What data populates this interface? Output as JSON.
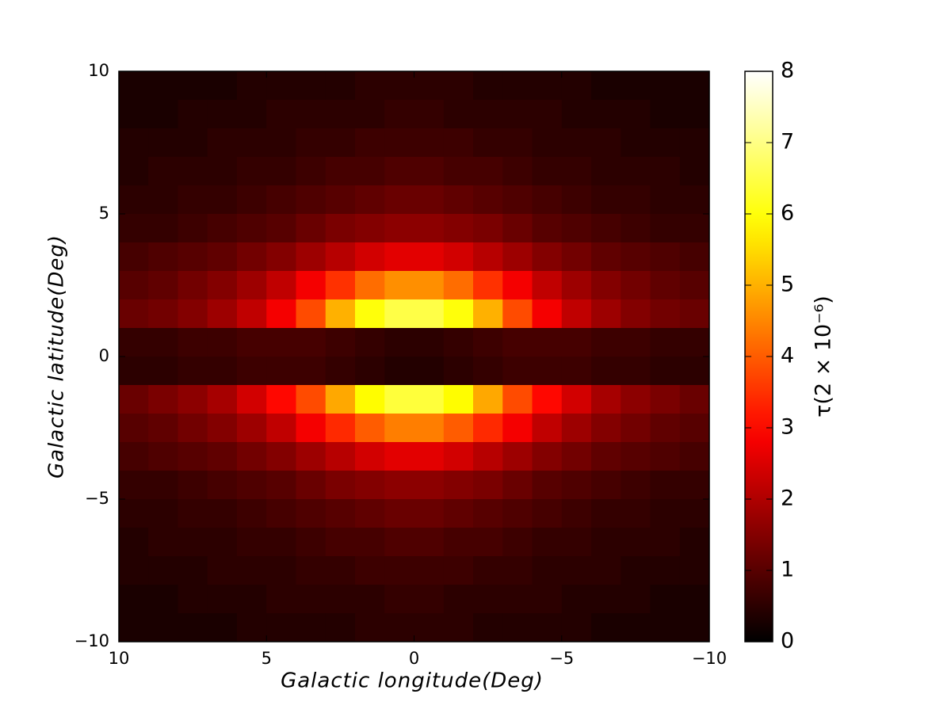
{
  "chart_data": {
    "type": "heatmap",
    "xlabel": "Galactic  longitude(Deg)",
    "ylabel": "Galactic  latitude(Deg)",
    "colorbar_label": "τ(2 × 10⁻⁶)",
    "colormap": "hot",
    "xlim": [
      10,
      -10
    ],
    "ylim": [
      -10,
      10
    ],
    "clim": [
      0,
      8
    ],
    "xticks": [
      10,
      5,
      0,
      {
        "value": -5,
        "label": "−5"
      },
      {
        "value": -10,
        "label": "−10"
      }
    ],
    "yticks": [
      {
        "value": -10,
        "label": "−10"
      },
      {
        "value": -5,
        "label": "−5"
      },
      0,
      5,
      10
    ],
    "cticks": [
      0,
      1,
      2,
      3,
      4,
      5,
      6,
      7,
      8
    ],
    "x": [
      9.5,
      8.5,
      7.5,
      6.5,
      5.5,
      4.5,
      3.5,
      2.5,
      1.5,
      0.5,
      -0.5,
      -1.5,
      -2.5,
      -3.5,
      -4.5,
      -5.5,
      -6.5,
      -7.5,
      -8.5,
      -9.5
    ],
    "y": [
      9.5,
      8.5,
      7.5,
      6.5,
      5.5,
      4.5,
      3.5,
      2.5,
      1.5,
      0.5,
      -0.5,
      -1.5,
      -2.5,
      -3.5,
      -4.5,
      -5.5,
      -6.5,
      -7.5,
      -8.5,
      -9.5
    ],
    "z": [
      [
        0.3,
        0.3,
        0.3,
        0.3,
        0.4,
        0.4,
        0.4,
        0.4,
        0.5,
        0.5,
        0.5,
        0.5,
        0.4,
        0.4,
        0.4,
        0.4,
        0.3,
        0.3,
        0.3,
        0.3
      ],
      [
        0.3,
        0.3,
        0.4,
        0.4,
        0.4,
        0.5,
        0.5,
        0.5,
        0.5,
        0.6,
        0.6,
        0.5,
        0.5,
        0.5,
        0.5,
        0.4,
        0.4,
        0.4,
        0.3,
        0.3
      ],
      [
        0.4,
        0.4,
        0.4,
        0.5,
        0.5,
        0.5,
        0.6,
        0.6,
        0.7,
        0.7,
        0.7,
        0.7,
        0.6,
        0.6,
        0.5,
        0.5,
        0.5,
        0.4,
        0.4,
        0.4
      ],
      [
        0.4,
        0.5,
        0.5,
        0.5,
        0.6,
        0.6,
        0.7,
        0.8,
        0.8,
        0.9,
        0.9,
        0.8,
        0.8,
        0.7,
        0.6,
        0.6,
        0.5,
        0.5,
        0.5,
        0.4
      ],
      [
        0.5,
        0.5,
        0.6,
        0.6,
        0.7,
        0.8,
        0.9,
        1.0,
        1.1,
        1.2,
        1.2,
        1.1,
        1.0,
        0.9,
        0.8,
        0.7,
        0.6,
        0.6,
        0.5,
        0.5
      ],
      [
        0.6,
        0.6,
        0.7,
        0.8,
        0.9,
        1.0,
        1.2,
        1.4,
        1.5,
        1.6,
        1.6,
        1.5,
        1.4,
        1.2,
        1.0,
        0.9,
        0.8,
        0.7,
        0.6,
        0.6
      ],
      [
        0.8,
        0.9,
        1.0,
        1.1,
        1.3,
        1.5,
        1.8,
        2.1,
        2.4,
        2.6,
        2.6,
        2.4,
        2.1,
        1.8,
        1.5,
        1.3,
        1.1,
        1.0,
        0.9,
        0.8
      ],
      [
        1.0,
        1.1,
        1.3,
        1.5,
        1.8,
        2.2,
        2.8,
        3.5,
        4.2,
        4.6,
        4.6,
        4.2,
        3.5,
        2.8,
        2.2,
        1.8,
        1.5,
        1.3,
        1.1,
        1.0
      ],
      [
        1.2,
        1.3,
        1.5,
        1.8,
        2.2,
        2.8,
        3.8,
        5.0,
        6.0,
        6.5,
        6.5,
        6.0,
        5.0,
        3.8,
        2.8,
        2.2,
        1.8,
        1.5,
        1.3,
        1.2
      ],
      [
        0.6,
        0.6,
        0.7,
        0.7,
        0.8,
        0.8,
        0.8,
        0.7,
        0.6,
        0.5,
        0.5,
        0.6,
        0.7,
        0.8,
        0.8,
        0.8,
        0.7,
        0.7,
        0.6,
        0.6
      ],
      [
        0.5,
        0.5,
        0.6,
        0.6,
        0.7,
        0.7,
        0.7,
        0.6,
        0.5,
        0.4,
        0.4,
        0.5,
        0.6,
        0.7,
        0.7,
        0.7,
        0.6,
        0.6,
        0.5,
        0.5
      ],
      [
        1.2,
        1.4,
        1.6,
        1.9,
        2.4,
        3.0,
        3.8,
        4.9,
        5.9,
        6.4,
        6.4,
        5.9,
        4.9,
        3.8,
        3.0,
        2.4,
        1.9,
        1.6,
        1.4,
        1.2
      ],
      [
        1.0,
        1.1,
        1.3,
        1.5,
        1.8,
        2.2,
        2.8,
        3.4,
        4.0,
        4.4,
        4.4,
        4.0,
        3.4,
        2.8,
        2.2,
        1.8,
        1.5,
        1.3,
        1.1,
        1.0
      ],
      [
        0.8,
        0.9,
        1.0,
        1.1,
        1.3,
        1.5,
        1.8,
        2.1,
        2.4,
        2.6,
        2.6,
        2.4,
        2.1,
        1.8,
        1.5,
        1.3,
        1.1,
        1.0,
        0.9,
        0.8
      ],
      [
        0.6,
        0.6,
        0.7,
        0.8,
        0.9,
        1.0,
        1.2,
        1.4,
        1.5,
        1.6,
        1.6,
        1.5,
        1.4,
        1.2,
        1.0,
        0.9,
        0.8,
        0.7,
        0.6,
        0.6
      ],
      [
        0.5,
        0.5,
        0.6,
        0.6,
        0.7,
        0.8,
        0.9,
        1.0,
        1.1,
        1.2,
        1.2,
        1.1,
        1.0,
        0.9,
        0.8,
        0.7,
        0.6,
        0.6,
        0.5,
        0.5
      ],
      [
        0.4,
        0.5,
        0.5,
        0.5,
        0.6,
        0.6,
        0.7,
        0.8,
        0.8,
        0.9,
        0.9,
        0.8,
        0.8,
        0.7,
        0.6,
        0.6,
        0.5,
        0.5,
        0.5,
        0.4
      ],
      [
        0.4,
        0.4,
        0.4,
        0.5,
        0.5,
        0.5,
        0.6,
        0.6,
        0.7,
        0.7,
        0.7,
        0.7,
        0.6,
        0.6,
        0.5,
        0.5,
        0.5,
        0.4,
        0.4,
        0.4
      ],
      [
        0.3,
        0.3,
        0.4,
        0.4,
        0.4,
        0.5,
        0.5,
        0.5,
        0.5,
        0.6,
        0.6,
        0.5,
        0.5,
        0.5,
        0.5,
        0.4,
        0.4,
        0.4,
        0.3,
        0.3
      ],
      [
        0.3,
        0.3,
        0.3,
        0.3,
        0.4,
        0.4,
        0.4,
        0.4,
        0.5,
        0.5,
        0.5,
        0.5,
        0.4,
        0.4,
        0.4,
        0.4,
        0.3,
        0.3,
        0.3,
        0.3
      ]
    ]
  }
}
